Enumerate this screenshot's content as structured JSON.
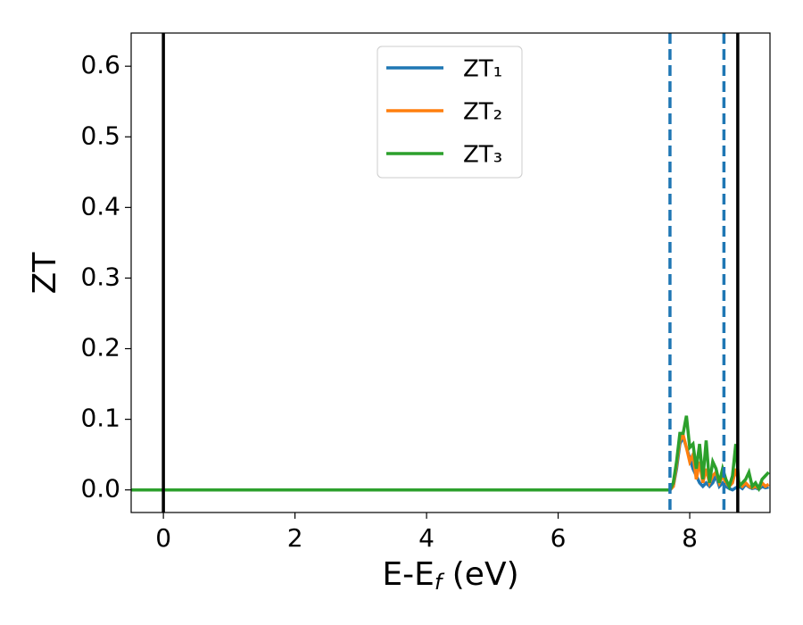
{
  "chart_data": {
    "type": "line",
    "x_label": [
      "E-E",
      "f",
      " (eV)"
    ],
    "y_label": "ZT",
    "x": [
      -0.5,
      7.7,
      7.75,
      7.8,
      7.85,
      7.9,
      7.95,
      8.0,
      8.05,
      8.1,
      8.15,
      8.2,
      8.25,
      8.3,
      8.35,
      8.4,
      8.45,
      8.5,
      8.55,
      8.6,
      8.65,
      8.7,
      8.75,
      8.8,
      8.85,
      8.9,
      8.95,
      9.0,
      9.05,
      9.1,
      9.15,
      9.2
    ],
    "series": [
      {
        "name": "ZT₁",
        "color": "#1f77b4",
        "values": [
          0,
          0,
          0.005,
          0.03,
          0.065,
          0.075,
          0.06,
          0.045,
          0.03,
          0.02,
          0.01,
          0.005,
          0.01,
          0.005,
          0.01,
          0.02,
          0.005,
          0.01,
          0.005,
          0.002,
          0,
          0.003,
          0.005,
          0.002,
          0.008,
          0.004,
          0.002,
          0.003,
          0.001,
          0.005,
          0.003,
          0.004
        ]
      },
      {
        "name": "ZT₂",
        "color": "#ff7f0e",
        "values": [
          0,
          0,
          0.005,
          0.035,
          0.07,
          0.078,
          0.06,
          0.04,
          0.05,
          0.015,
          0.04,
          0.01,
          0.03,
          0.01,
          0.02,
          0.025,
          0.01,
          0.02,
          0.01,
          0.005,
          0.01,
          0.03,
          0.01,
          0.005,
          0.01,
          0.005,
          0.003,
          0.005,
          0.002,
          0.01,
          0.005,
          0.008
        ]
      },
      {
        "name": "ZT₃",
        "color": "#2ca02c",
        "values": [
          0,
          0,
          0.01,
          0.04,
          0.08,
          0.08,
          0.105,
          0.06,
          0.065,
          0.03,
          0.065,
          0.015,
          0.07,
          0.01,
          0.04,
          0.03,
          0.01,
          0.03,
          0.015,
          0.005,
          0.02,
          0.065,
          0.005,
          0.01,
          0.015,
          0.025,
          0.005,
          0.01,
          0.002,
          0.015,
          0.02,
          0.025
        ]
      }
    ],
    "vlines": [
      {
        "x": 0,
        "color": "#000000",
        "style": "solid"
      },
      {
        "x": 8.73,
        "color": "#000000",
        "style": "solid"
      },
      {
        "x": 7.7,
        "color": "#1f77b4",
        "style": "dashed"
      },
      {
        "x": 8.52,
        "color": "#1f77b4",
        "style": "dashed"
      }
    ],
    "xlim": [
      -0.49,
      9.22
    ],
    "ylim": [
      -0.032,
      0.647
    ],
    "xticks": [
      0,
      2,
      4,
      6,
      8
    ],
    "yticks": [
      {
        "value": 0,
        "label": "0.0"
      },
      0.1,
      0.2,
      0.3,
      0.4,
      0.5,
      0.6
    ],
    "legend": "upper center",
    "grid": false
  }
}
